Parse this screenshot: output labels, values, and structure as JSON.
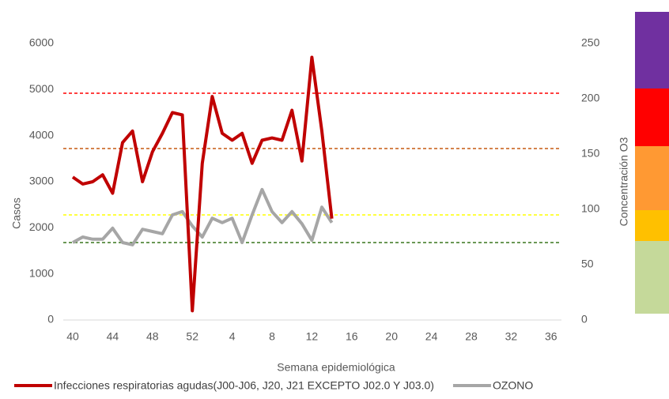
{
  "chart_data": {
    "type": "line",
    "x_label": "Semana epidemiológica",
    "y_label": "Casos",
    "y2_label": "Concentración O3",
    "categories": [
      "40",
      null,
      null,
      null,
      "44",
      null,
      null,
      null,
      "48",
      null,
      null,
      null,
      "52",
      null,
      null,
      null,
      "4",
      null,
      null,
      null,
      "8",
      null,
      null,
      null,
      "12",
      null,
      null,
      null,
      "16",
      null,
      null,
      null,
      "20",
      null,
      null,
      null,
      "24",
      null,
      null,
      null,
      "28",
      null,
      null,
      null,
      "32",
      null,
      null,
      null,
      "36",
      null,
      null,
      null
    ],
    "series": [
      {
        "name": "Infecciones respiratorias agudas(J00-J06, J20, J21 EXCEPTO J02.0 Y J03.0)",
        "color": "#c00000",
        "values": [
          3100,
          2950,
          3000,
          3150,
          2750,
          3850,
          4100,
          3000,
          3650,
          4050,
          4500,
          4450,
          200,
          3400,
          4850,
          4050,
          3900,
          4050,
          3400,
          3900,
          3950,
          3900,
          4550,
          3450,
          5700,
          4100,
          2200,
          null,
          null,
          null,
          null,
          null,
          null,
          null,
          null,
          null,
          null,
          null,
          null,
          null,
          null,
          null,
          null,
          null,
          null,
          null,
          null,
          null,
          null,
          null,
          null,
          null
        ]
      },
      {
        "name": "OZONO",
        "color": "#a6a6a6",
        "axis": "y2",
        "values": [
          70,
          75,
          73,
          73,
          83,
          70,
          68,
          82,
          80,
          78,
          95,
          98,
          85,
          75,
          92,
          88,
          92,
          70,
          95,
          118,
          98,
          88,
          98,
          87,
          72,
          102,
          88,
          null,
          null,
          null,
          null,
          null,
          null,
          null,
          null,
          null,
          null,
          null,
          null,
          null,
          null,
          null,
          null,
          null,
          null,
          null,
          null,
          null,
          null,
          null,
          null,
          null
        ]
      }
    ],
    "thresholds": [
      {
        "value": 205,
        "color": "#ff0000",
        "axis": "y2"
      },
      {
        "value": 155,
        "color": "#c55a11",
        "axis": "y2"
      },
      {
        "value": 95,
        "color": "#ffff00",
        "axis": "y2"
      },
      {
        "value": 70,
        "color": "#38761d",
        "axis": "y2"
      }
    ],
    "ylim": [
      0,
      6000
    ],
    "yticks": [
      0,
      1000,
      2000,
      3000,
      4000,
      5000,
      6000
    ],
    "y2lim": [
      0,
      250
    ],
    "y2ticks": [
      0,
      50,
      100,
      150,
      200,
      250
    ]
  }
}
